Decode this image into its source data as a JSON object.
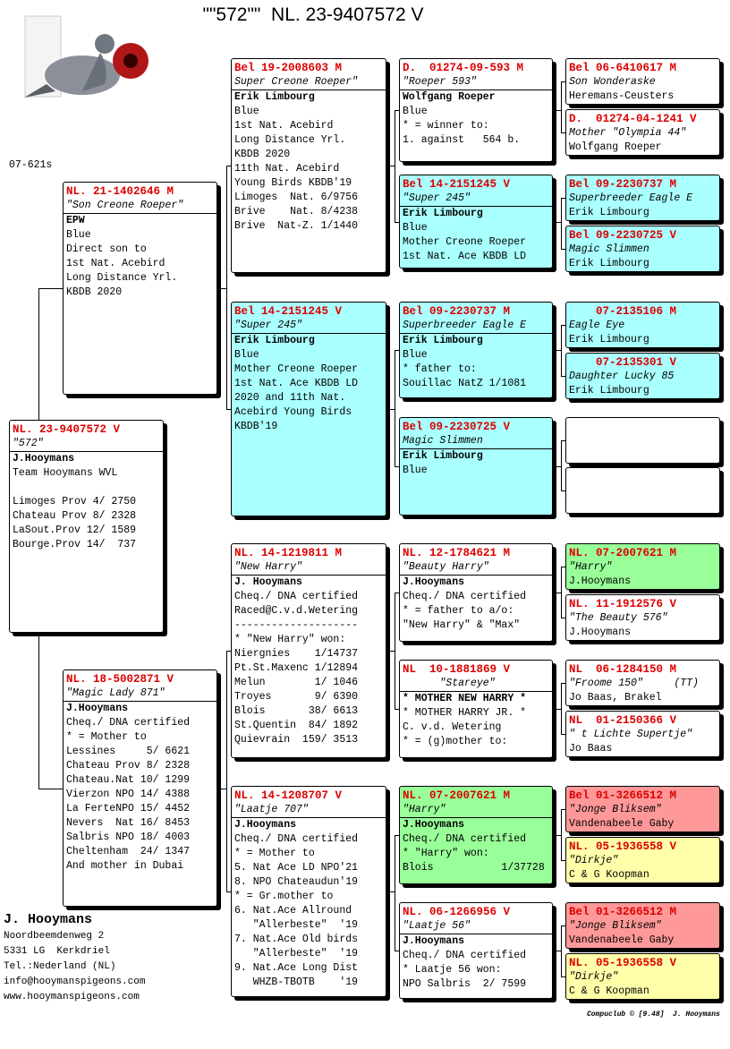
{
  "header": {
    "title": "\"\"572\"\"  NL. 23-9407572 V",
    "code": "07-621s"
  },
  "boxes": [
    {
      "color": "#ffffff",
      "ring": "NL. 23-9407572 V",
      "name": "\"572\"",
      "owner": "J.Hooymans",
      "lines": [
        "Team Hooymans WVL"
      ],
      "results": [
        "Limoges Prov 4/ 2750",
        "Chateau Prov 8/ 2328",
        "LaSout.Prov 12/ 1589",
        "Bourge.Prov 14/  737"
      ]
    },
    {
      "color": "#ffffff",
      "ring": "NL. 21-1402646 M",
      "name": "\"Son Creone Roeper\"",
      "owner": "EPW",
      "lines": [
        "Blue",
        "Direct son to",
        "1st Nat. Acebird",
        "Long Distance Yrl.",
        "KBDB 2020"
      ]
    },
    {
      "color": "#ffffff",
      "ring": "NL. 18-5002871 V",
      "name": "\"Magic Lady 871\"",
      "owner": "J.Hooymans",
      "lines": [
        "Cheq./ DNA certified",
        "* = Mother to",
        "Lessines     5/ 6621",
        "Chateau Prov 8/ 2328",
        "Chateau.Nat 10/ 1299",
        "Vierzon NPO 14/ 4388",
        "La FerteNPO 15/ 4452",
        "Nevers  Nat 16/ 8453",
        "Salbris NPO 18/ 4003",
        "Cheltenham  24/ 1347",
        "And mother in Dubai"
      ]
    },
    {
      "color": "#ffffff",
      "ring": "Bel 19-2008603 M",
      "name": "Super Creone Roeper\"",
      "owner": "Erik Limbourg",
      "lines": [
        "Blue",
        "1st Nat. Acebird",
        "Long Distance Yrl.",
        "KBDB 2020",
        "11th Nat. Acebird",
        "Young Birds KBDB'19",
        "Limoges  Nat. 6/9756",
        "Brive    Nat. 8/4238",
        "Brive  Nat-Z. 1/1440"
      ]
    },
    {
      "color": "#aaffff",
      "ring": "Bel 14-2151245 V",
      "name": "\"Super 245\"",
      "owner": "Erik Limbourg",
      "lines": [
        "Blue",
        "Mother Creone Roeper",
        "1st Nat. Ace KBDB LD",
        "2020 and 11th Nat.",
        "Acebird Young Birds",
        "KBDB'19"
      ]
    },
    {
      "color": "#ffffff",
      "ring": "NL. 14-1219811 M",
      "name": "\"New Harry\"",
      "owner": "J. Hooymans",
      "lines": [
        "Cheq./ DNA certified",
        "Raced@C.v.d.Wetering",
        "--------------------",
        "* \"New Harry\" won:",
        "Niergnies    1/14737",
        "Pt.St.Maxenc 1/12894",
        "Melun        1/ 1046",
        "Troyes       9/ 6390",
        "Blois       38/ 6613",
        "St.Quentin  84/ 1892",
        "Quievrain  159/ 3513"
      ]
    },
    {
      "color": "#ffffff",
      "ring": "NL. 14-1208707 V",
      "name": "\"Laatje 707\"",
      "owner": "J.Hooymans",
      "lines": [
        "Cheq./ DNA certified",
        "* = Mother to",
        "5. Nat Ace LD NPO'21",
        "8. NPO Chateaudun'19",
        "* = Gr.mother to",
        "6. Nat.Ace Allround",
        "   \"Allerbeste\"  '19",
        "7. Nat.Ace Old birds",
        "   \"Allerbeste\"  '19",
        "9. Nat.Ace Long Dist",
        "   WHZB-TBOTB    '19"
      ]
    },
    {
      "color": "#ffffff",
      "ring": "D.  01274-09-593 M",
      "name": "\"Roeper 593\"",
      "owner": "Wolfgang Roeper",
      "lines": [
        "Blue",
        "* = winner to:",
        "1. against   564 b."
      ]
    },
    {
      "color": "#aaffff",
      "ring": "Bel 14-2151245 V",
      "name": "\"Super 245\"",
      "owner": "Erik Limbourg",
      "lines": [
        "Blue",
        "Mother Creone Roeper",
        "1st Nat. Ace KBDB LD"
      ]
    },
    {
      "color": "#aaffff",
      "ring": "Bel 09-2230737 M",
      "name": "Superbreeder Eagle E",
      "owner": "Erik Limbourg",
      "lines": [
        "Blue",
        "* father to:",
        "Souillac NatZ 1/1081"
      ]
    },
    {
      "color": "#aaffff",
      "ring": "Bel 09-2230725 V",
      "name": "Magic Slimmen",
      "owner": "Erik Limbourg",
      "lines": [
        "Blue"
      ]
    },
    {
      "color": "#ffffff",
      "ring": "NL. 12-1784621 M",
      "name": "\"Beauty Harry\"",
      "owner": "J.Hooymans",
      "lines": [
        "Cheq./ DNA certified",
        "* = father to a/o:",
        "\"New Harry\" & \"Max\""
      ]
    },
    {
      "color": "#ffffff",
      "ring": "NL  10-1881869 V",
      "name": "      \"Stareye\"",
      "owner": "* MOTHER NEW HARRY *",
      "lines": [
        "* MOTHER HARRY JR. *",
        "C. v.d. Wetering",
        "* = (g)mother to:"
      ]
    },
    {
      "color": "#99ff99",
      "ring": "NL. 07-2007621 M",
      "name": "\"Harry\"",
      "owner": "J.Hooymans",
      "lines": [
        "Cheq./ DNA certified",
        "* \"Harry\" won:",
        "Blois           1/37728"
      ]
    },
    {
      "color": "#ffffff",
      "ring": "NL. 06-1266956 V",
      "name": "\"Laatje 56\"",
      "owner": "J.Hooymans",
      "lines": [
        "Cheq./ DNA certified",
        "* Laatje 56 won:",
        "NPO Salbris  2/ 7599"
      ]
    },
    {
      "color": "#ffffff",
      "ring": "Bel 06-6410617 M",
      "name": "Son Wonderaske",
      "owner": "Heremans-Ceusters"
    },
    {
      "color": "#ffffff",
      "ring": "D.  01274-04-1241 V",
      "name": "Mother \"Olympia 44\"",
      "owner": "Wolfgang Roeper"
    },
    {
      "color": "#aaffff",
      "ring": "Bel 09-2230737 M",
      "name": "Superbreeder Eagle E",
      "owner": "Erik Limbourg"
    },
    {
      "color": "#aaffff",
      "ring": "Bel 09-2230725 V",
      "name": "Magic Slimmen",
      "owner": "Erik Limbourg"
    },
    {
      "color": "#aaffff",
      "ring": "    07-2135106 M",
      "name": "Eagle Eye",
      "owner": "Erik Limbourg"
    },
    {
      "color": "#aaffff",
      "ring": "    07-2135301 V",
      "name": "Daughter Lucky 85",
      "owner": "Erik Limbourg"
    },
    {
      "color": "#ffffff"
    },
    {
      "color": "#ffffff"
    },
    {
      "color": "#99ff99",
      "ring": "NL. 07-2007621 M",
      "name": "\"Harry\"",
      "owner": "J.Hooymans"
    },
    {
      "color": "#ffffff",
      "ring": "NL. 11-1912576 V",
      "name": "\"The Beauty 576\"",
      "owner": "J.Hooymans"
    },
    {
      "color": "#ffffff",
      "ring": "NL  06-1284150 M",
      "name": "\"Froome 150\"     (TT)",
      "owner": "Jo Baas, Brakel"
    },
    {
      "color": "#ffffff",
      "ring": "NL  01-2150366 V",
      "name": "\" t Lichte Supertje\"",
      "owner": "Jo Baas"
    },
    {
      "color": "#ff9999",
      "ring": "Bel 01-3266512 M",
      "name": "\"Jonge Bliksem\"",
      "owner": "Vandenabeele Gaby"
    },
    {
      "color": "#ffffaa",
      "ring": "NL. 05-1936558 V",
      "name": "\"Dirkje\"",
      "owner": "C & G Koopman"
    },
    {
      "color": "#ff9999",
      "ring": "Bel 01-3266512 M",
      "name": "\"Jonge Bliksem\"",
      "owner": "Vandenabeele Gaby"
    },
    {
      "color": "#ffffaa",
      "ring": "NL. 05-1936558 V",
      "name": "\"Dirkje\"",
      "owner": "C & G Koopman"
    }
  ],
  "footer": {
    "name": "J. Hooymans",
    "address": [
      "Noordbeemdenweg 2",
      "5331 LG  Kerkdriel",
      "Tel.:Nederland (NL)",
      "info@hooymanspigeons.com",
      "www.hooymanspigeons.com"
    ],
    "credit": "Compuclub © [9.48]  J. Hooymans"
  }
}
